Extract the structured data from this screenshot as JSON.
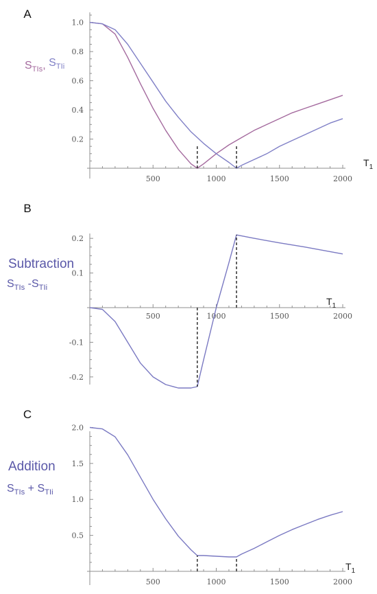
{
  "colors": {
    "surface": "#a46a9e",
    "internal": "#7f7fc6",
    "derived": "#7a79c2",
    "label_text": "#5a58a8"
  },
  "chart_data": [
    {
      "panel": "A",
      "type": "line",
      "ylabel_parts": [
        {
          "base": "S",
          "sub": "TIs",
          "color": "#a46a9e"
        },
        {
          "base": ",",
          "sub": "",
          "color": "#a46a9e"
        },
        {
          "base": " S",
          "sub": "TIi",
          "color": "#7f7fc6"
        }
      ],
      "xlabel": {
        "base": "T",
        "sub": "1"
      },
      "xlim": [
        0,
        2000
      ],
      "ylim": [
        0,
        1.05
      ],
      "xticks": [
        500,
        1000,
        1500,
        2000
      ],
      "yticks": [
        0.2,
        0.4,
        0.6,
        0.8,
        1.0
      ],
      "ytick_labels": [
        "0.2",
        "0.4",
        "0.6",
        "0.8",
        "1.0"
      ],
      "series": [
        {
          "color": "#a46a9e",
          "x": [
            0,
            100,
            200,
            300,
            400,
            500,
            600,
            700,
            800,
            850,
            900,
            1000,
            1100,
            1200,
            1300,
            1400,
            1500,
            1600,
            1700,
            1800,
            1900,
            2000
          ],
          "y": [
            1.0,
            0.99,
            0.92,
            0.76,
            0.58,
            0.41,
            0.26,
            0.13,
            0.03,
            0.0,
            0.03,
            0.1,
            0.16,
            0.21,
            0.26,
            0.3,
            0.34,
            0.38,
            0.41,
            0.44,
            0.47,
            0.5
          ]
        },
        {
          "color": "#7f7fc6",
          "x": [
            0,
            100,
            200,
            300,
            400,
            500,
            600,
            700,
            800,
            900,
            1000,
            1100,
            1160,
            1200,
            1300,
            1400,
            1500,
            1600,
            1700,
            1800,
            1900,
            2000
          ],
          "y": [
            1.0,
            0.99,
            0.95,
            0.85,
            0.72,
            0.59,
            0.46,
            0.35,
            0.25,
            0.17,
            0.1,
            0.04,
            0.0,
            0.02,
            0.06,
            0.1,
            0.15,
            0.19,
            0.23,
            0.27,
            0.31,
            0.34
          ]
        }
      ],
      "markers": [
        {
          "x": 850,
          "y": 0.165
        },
        {
          "x": 1160,
          "y": 0.165
        }
      ]
    },
    {
      "panel": "B",
      "type": "line",
      "ylabel_title": "Subtraction",
      "ylabel_parts": [
        {
          "base": "S",
          "sub": "TIs"
        },
        {
          "base": " -S",
          "sub": "TIi"
        }
      ],
      "xlabel": {
        "base": "T",
        "sub": "1"
      },
      "xlim": [
        0,
        2000
      ],
      "ylim": [
        -0.25,
        0.23
      ],
      "xticks": [
        500,
        1000,
        1500,
        2000
      ],
      "yticks": [
        -0.2,
        -0.1,
        0.1,
        0.2
      ],
      "ytick_labels": [
        "-0.2",
        "-0.1",
        "0.1",
        "0.2"
      ],
      "series": [
        {
          "color": "#7a79c2",
          "x": [
            0,
            100,
            200,
            300,
            400,
            500,
            600,
            700,
            800,
            850,
            900,
            1000,
            1100,
            1160,
            1300,
            1500,
            1700,
            2000
          ],
          "y": [
            0.0,
            -0.005,
            -0.04,
            -0.1,
            -0.16,
            -0.2,
            -0.222,
            -0.232,
            -0.232,
            -0.228,
            -0.15,
            0.0,
            0.13,
            0.21,
            0.2,
            0.187,
            0.175,
            0.155
          ]
        }
      ],
      "markers": [
        {
          "x": 850,
          "y": -0.228
        },
        {
          "x": 1160,
          "y": 0.21
        }
      ]
    },
    {
      "panel": "C",
      "type": "line",
      "ylabel_title": "Addition",
      "ylabel_parts": [
        {
          "base": "S",
          "sub": "TIs"
        },
        {
          "base": " + S",
          "sub": "TIi"
        }
      ],
      "xlabel": {
        "base": "T",
        "sub": "1"
      },
      "xlim": [
        0,
        2000
      ],
      "ylim": [
        0,
        2.1
      ],
      "xticks": [
        500,
        1000,
        1500,
        2000
      ],
      "yticks": [
        0.5,
        1.0,
        1.5,
        2.0
      ],
      "ytick_labels": [
        "0.5",
        "1.0",
        "1.5",
        "2.0"
      ],
      "series": [
        {
          "color": "#7a79c2",
          "x": [
            0,
            100,
            200,
            300,
            400,
            500,
            600,
            700,
            800,
            850,
            900,
            1000,
            1100,
            1160,
            1200,
            1300,
            1400,
            1500,
            1600,
            1700,
            1800,
            1900,
            2000
          ],
          "y": [
            2.0,
            1.98,
            1.87,
            1.62,
            1.31,
            1.0,
            0.73,
            0.49,
            0.3,
            0.22,
            0.22,
            0.21,
            0.2,
            0.2,
            0.24,
            0.32,
            0.41,
            0.5,
            0.58,
            0.65,
            0.72,
            0.78,
            0.83
          ]
        }
      ],
      "markers": [
        {
          "x": 850,
          "y": 0.22
        },
        {
          "x": 1160,
          "y": 0.2
        }
      ]
    }
  ]
}
